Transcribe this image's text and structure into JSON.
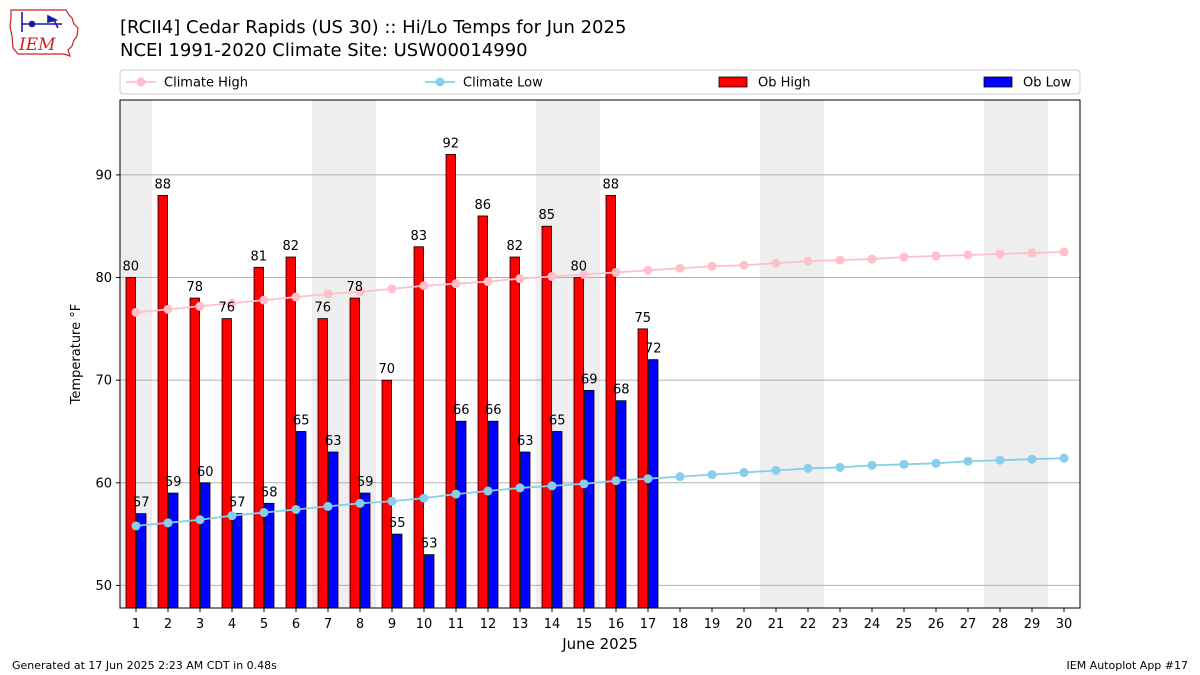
{
  "header": {
    "title_line1": "[RCII4] Cedar Rapids (US 30) :: Hi/Lo Temps for Jun 2025",
    "title_line2": "NCEI 1991-2020 Climate Site: USW00014990",
    "logo_text": "IEM"
  },
  "footer": {
    "left": "Generated at 17 Jun 2025 2:23 AM CDT in 0.48s",
    "right": "IEM Autoplot App #17"
  },
  "colors": {
    "ob_high": "#ff0000",
    "ob_low": "#0000ff",
    "climate_high": "#ffc0cb",
    "climate_low": "#87ceeb",
    "weekend_shade": "#eeeeee",
    "grid": "#b0b0b0",
    "logo_red": "#cc2222",
    "logo_blue": "#1a1aa8"
  },
  "chart_data": {
    "type": "bar",
    "xlabel": "June 2025",
    "ylabel": "Temperature °F",
    "ylim": [
      47.8,
      97.3
    ],
    "yticks": [
      50,
      60,
      70,
      80,
      90
    ],
    "grid": "horizontal",
    "legend_placement": "top",
    "days": [
      1,
      2,
      3,
      4,
      5,
      6,
      7,
      8,
      9,
      10,
      11,
      12,
      13,
      14,
      15,
      16,
      17,
      18,
      19,
      20,
      21,
      22,
      23,
      24,
      25,
      26,
      27,
      28,
      29,
      30
    ],
    "shaded_days": [
      1,
      7,
      8,
      14,
      15,
      21,
      22,
      28,
      29
    ],
    "series": [
      {
        "name": "Climate High",
        "type": "line",
        "values": [
          76.6,
          76.9,
          77.2,
          77.5,
          77.8,
          78.1,
          78.4,
          78.6,
          78.9,
          79.2,
          79.4,
          79.6,
          79.9,
          80.1,
          80.3,
          80.5,
          80.7,
          80.9,
          81.1,
          81.2,
          81.4,
          81.6,
          81.7,
          81.8,
          82.0,
          82.1,
          82.2,
          82.3,
          82.4,
          82.5
        ]
      },
      {
        "name": "Climate Low",
        "type": "line",
        "values": [
          55.8,
          56.1,
          56.4,
          56.8,
          57.1,
          57.4,
          57.7,
          58.0,
          58.2,
          58.5,
          58.9,
          59.2,
          59.5,
          59.7,
          59.9,
          60.2,
          60.4,
          60.6,
          60.8,
          61.0,
          61.2,
          61.4,
          61.5,
          61.7,
          61.8,
          61.9,
          62.1,
          62.2,
          62.3,
          62.4
        ]
      },
      {
        "name": "Ob High",
        "type": "bar",
        "values": [
          80,
          88,
          78,
          76,
          81,
          82,
          76,
          78,
          70,
          83,
          92,
          86,
          82,
          85,
          80,
          88,
          75
        ]
      },
      {
        "name": "Ob Low",
        "type": "bar",
        "values": [
          57,
          59,
          60,
          57,
          58,
          65,
          63,
          59,
          55,
          53,
          66,
          66,
          63,
          65,
          69,
          68,
          72
        ]
      }
    ]
  }
}
